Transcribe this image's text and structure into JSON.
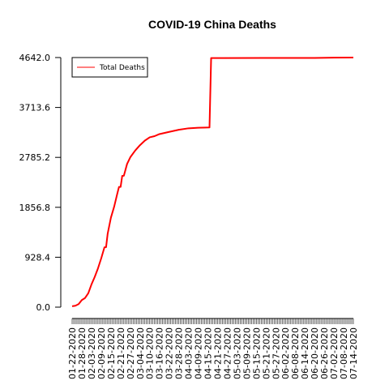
{
  "chart_data": {
    "type": "line",
    "title": "COVID-19 China Deaths",
    "xlabel": "",
    "ylabel": "",
    "x_start": "01-22-2020",
    "x_end": "07-14-2020",
    "x_tick_labels": [
      "01-22-2020",
      "01-28-2020",
      "02-03-2020",
      "02-09-2020",
      "02-15-2020",
      "02-21-2020",
      "02-27-2020",
      "03-04-2020",
      "03-10-2020",
      "03-16-2020",
      "03-22-2020",
      "03-28-2020",
      "04-03-2020",
      "04-09-2020",
      "04-15-2020",
      "04-21-2020",
      "04-27-2020",
      "05-03-2020",
      "05-09-2020",
      "05-15-2020",
      "05-21-2020",
      "05-27-2020",
      "06-02-2020",
      "06-08-2020",
      "06-14-2020",
      "06-20-2020",
      "06-26-2020",
      "07-02-2020",
      "07-08-2020",
      "07-14-2020"
    ],
    "y_tick_labels": [
      "0.0",
      "928.4",
      "1856.8",
      "2785.2",
      "3713.6",
      "4642.0"
    ],
    "ylim": [
      0,
      4642.0
    ],
    "legend": {
      "position": "top-left"
    },
    "grid": false,
    "series": [
      {
        "name": "Total Deaths",
        "color": "#ff0000",
        "points": [
          [
            "01-22-2020",
            17
          ],
          [
            "01-24-2020",
            26
          ],
          [
            "01-26-2020",
            56
          ],
          [
            "01-28-2020",
            132
          ],
          [
            "01-30-2020",
            170
          ],
          [
            "02-01-2020",
            259
          ],
          [
            "02-03-2020",
            425
          ],
          [
            "02-05-2020",
            563
          ],
          [
            "02-07-2020",
            722
          ],
          [
            "02-09-2020",
            908
          ],
          [
            "02-11-2020",
            1113
          ],
          [
            "02-12-2020",
            1115
          ],
          [
            "02-13-2020",
            1367
          ],
          [
            "02-15-2020",
            1665
          ],
          [
            "02-17-2020",
            1868
          ],
          [
            "02-19-2020",
            2118
          ],
          [
            "02-20-2020",
            2236
          ],
          [
            "02-21-2020",
            2236
          ],
          [
            "02-22-2020",
            2441
          ],
          [
            "02-23-2020",
            2443
          ],
          [
            "02-25-2020",
            2663
          ],
          [
            "02-27-2020",
            2788
          ],
          [
            "03-01-2020",
            2912
          ],
          [
            "03-04-2020",
            3013
          ],
          [
            "03-07-2020",
            3097
          ],
          [
            "03-10-2020",
            3158
          ],
          [
            "03-13-2020",
            3180
          ],
          [
            "03-16-2020",
            3218
          ],
          [
            "03-22-2020",
            3259
          ],
          [
            "03-28-2020",
            3299
          ],
          [
            "04-03-2020",
            3326
          ],
          [
            "04-09-2020",
            3336
          ],
          [
            "04-16-2020",
            3342
          ],
          [
            "04-17-2020",
            4632
          ],
          [
            "04-25-2020",
            4632
          ],
          [
            "05-20-2020",
            4634
          ],
          [
            "06-20-2020",
            4634
          ],
          [
            "07-02-2020",
            4641
          ],
          [
            "07-14-2020",
            4642
          ]
        ]
      }
    ]
  }
}
